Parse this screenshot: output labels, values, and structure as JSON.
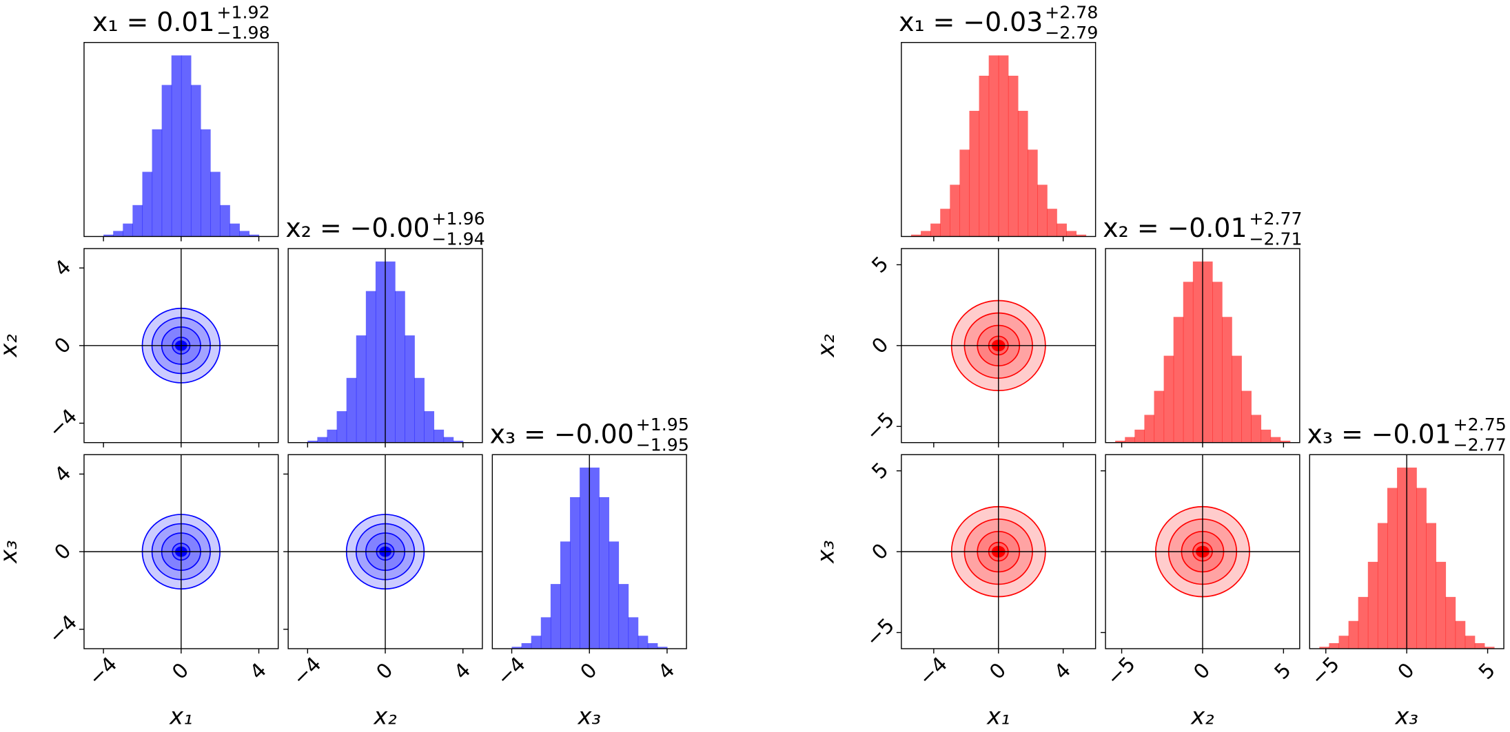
{
  "chart_data": [
    {
      "type": "corner",
      "color": "#0000ff",
      "hist_ylim": [
        0,
        1.05
      ],
      "contour_radii": [
        0.45,
        1.0,
        1.5,
        2.0
      ],
      "truths": [
        0,
        0,
        0
      ],
      "parameters": [
        {
          "label": "x₁",
          "title": "x₁ = 0.01",
          "title_upper": "+1.92",
          "title_lower": "−1.98",
          "xlim": [
            -5,
            5
          ],
          "xticks": [
            {
              "value": -4,
              "label": "−4"
            },
            0,
            4
          ],
          "bins": [
            -5,
            -4.5,
            -4,
            -3.5,
            -3,
            -2.5,
            -2,
            -1.5,
            -1,
            -0.5,
            0,
            0.5,
            1,
            1.5,
            2,
            2.5,
            3,
            3.5,
            4,
            4.5,
            5
          ],
          "counts": [
            0,
            0,
            0.01,
            0.03,
            0.07,
            0.17,
            0.35,
            0.58,
            0.82,
            0.98,
            0.98,
            0.82,
            0.58,
            0.35,
            0.17,
            0.07,
            0.03,
            0.01,
            0,
            0
          ]
        },
        {
          "label": "x₂",
          "title": "x₂ = −0.00",
          "title_upper": "+1.96",
          "title_lower": "−1.94",
          "xlim": [
            -5,
            5
          ],
          "xticks": [
            {
              "value": -4,
              "label": "−4"
            },
            0,
            4
          ],
          "bins": [
            -5,
            -4.5,
            -4,
            -3.5,
            -3,
            -2.5,
            -2,
            -1.5,
            -1,
            -0.5,
            0,
            0.5,
            1,
            1.5,
            2,
            2.5,
            3,
            3.5,
            4,
            4.5,
            5
          ],
          "counts": [
            0,
            0,
            0.01,
            0.03,
            0.07,
            0.17,
            0.35,
            0.58,
            0.82,
            0.98,
            0.98,
            0.82,
            0.58,
            0.35,
            0.17,
            0.07,
            0.03,
            0.01,
            0,
            0
          ]
        },
        {
          "label": "x₃",
          "title": "x₃ = −0.00",
          "title_upper": "+1.95",
          "title_lower": "−1.95",
          "xlim": [
            -5,
            5
          ],
          "xticks": [
            {
              "value": -4,
              "label": "−4"
            },
            0,
            4
          ],
          "bins": [
            -5,
            -4.5,
            -4,
            -3.5,
            -3,
            -2.5,
            -2,
            -1.5,
            -1,
            -0.5,
            0,
            0.5,
            1,
            1.5,
            2,
            2.5,
            3,
            3.5,
            4,
            4.5,
            5
          ],
          "counts": [
            0,
            0,
            0.01,
            0.03,
            0.07,
            0.17,
            0.35,
            0.58,
            0.82,
            0.98,
            0.98,
            0.82,
            0.58,
            0.35,
            0.17,
            0.07,
            0.03,
            0.01,
            0,
            0
          ]
        }
      ]
    },
    {
      "type": "corner",
      "color": "#ff0000",
      "hist_ylim": [
        0,
        1.05
      ],
      "contour_radii": [
        0.6,
        1.3,
        2.1,
        2.9
      ],
      "truths": [
        0,
        0,
        0
      ],
      "parameters": [
        {
          "label": "x₁",
          "title": "x₁ = −0.03",
          "title_upper": "+2.78",
          "title_lower": "−2.79",
          "xlim": [
            -6,
            6
          ],
          "xticks": [
            {
              "value": -4,
              "label": "−4"
            },
            0,
            4
          ],
          "bins": [
            -6,
            -5.4,
            -4.8,
            -4.2,
            -3.6,
            -3,
            -2.4,
            -1.8,
            -1.2,
            -0.6,
            0,
            0.6,
            1.2,
            1.8,
            2.4,
            3,
            3.6,
            4.2,
            4.8,
            5.4,
            6
          ],
          "counts": [
            0,
            0.01,
            0.03,
            0.07,
            0.15,
            0.28,
            0.47,
            0.68,
            0.87,
            0.98,
            0.98,
            0.87,
            0.68,
            0.47,
            0.28,
            0.15,
            0.07,
            0.03,
            0.01,
            0
          ]
        },
        {
          "label": "x₂",
          "title": "x₂ = −0.01",
          "title_upper": "+2.77",
          "title_lower": "−2.71",
          "xlim": [
            -6,
            6
          ],
          "xticks": [
            {
              "value": -5,
              "label": "−5"
            },
            0,
            5
          ],
          "bins": [
            -6,
            -5.4,
            -4.8,
            -4.2,
            -3.6,
            -3,
            -2.4,
            -1.8,
            -1.2,
            -0.6,
            0,
            0.6,
            1.2,
            1.8,
            2.4,
            3,
            3.6,
            4.2,
            4.8,
            5.4,
            6
          ],
          "counts": [
            0,
            0.01,
            0.03,
            0.07,
            0.15,
            0.28,
            0.47,
            0.68,
            0.87,
            0.98,
            0.98,
            0.87,
            0.68,
            0.47,
            0.28,
            0.15,
            0.07,
            0.03,
            0.01,
            0
          ]
        },
        {
          "label": "x₃",
          "title": "x₃ = −0.01",
          "title_upper": "+2.75",
          "title_lower": "−2.77",
          "xlim": [
            -6,
            6
          ],
          "xticks": [
            {
              "value": -5,
              "label": "−5"
            },
            0,
            5
          ],
          "bins": [
            -6,
            -5.4,
            -4.8,
            -4.2,
            -3.6,
            -3,
            -2.4,
            -1.8,
            -1.2,
            -0.6,
            0,
            0.6,
            1.2,
            1.8,
            2.4,
            3,
            3.6,
            4.2,
            4.8,
            5.4,
            6
          ],
          "counts": [
            0,
            0.01,
            0.03,
            0.07,
            0.15,
            0.28,
            0.47,
            0.68,
            0.87,
            0.98,
            0.98,
            0.87,
            0.68,
            0.47,
            0.28,
            0.15,
            0.07,
            0.03,
            0.01,
            0
          ]
        }
      ]
    }
  ]
}
